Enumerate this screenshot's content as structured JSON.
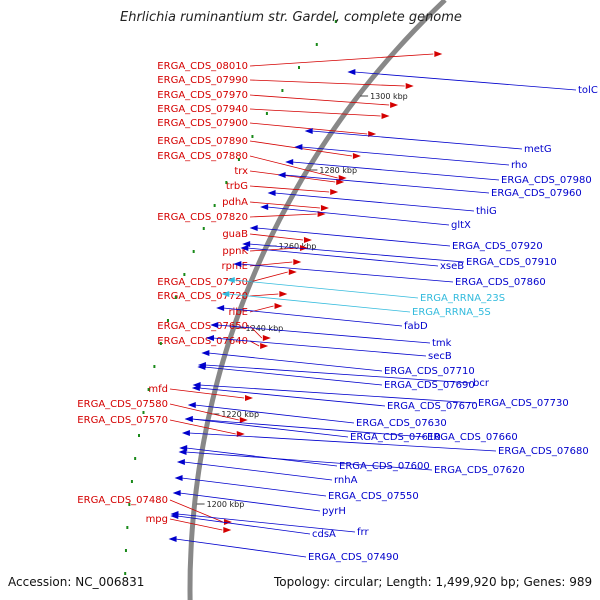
{
  "title": "Ehrlichia ruminantium str. Gardel, complete genome",
  "accession_text": "Accession: NC_006831",
  "summary_text": "Topology: circular; Length: 1,499,920 bp; Genes: 989",
  "colors": {
    "forward_label": "#d40000",
    "reverse_label": "#0000cc",
    "rrna_label": "#33bbdd",
    "backbone": "#888888",
    "marker": "#1a8a1a"
  },
  "kbp_labels": [
    "1300 kbp",
    "1280 kbp",
    "1260 kbp",
    "1240 kbp",
    "1220 kbp",
    "1200 kbp"
  ],
  "forward_genes": [
    "ERGA_CDS_08010",
    "ERGA_CDS_07990",
    "ERGA_CDS_07970",
    "ERGA_CDS_07940",
    "ERGA_CDS_07900",
    "ERGA_CDS_07890",
    "ERGA_CDS_07880",
    "trx",
    "trbG",
    "pdhA",
    "ERGA_CDS_07820",
    "guaB",
    "ppnK",
    "rpmE",
    "ERGA_CDS_07750",
    "ERGA_CDS_07720",
    "ribE",
    "ERGA_CDS_07650",
    "ERGA_CDS_07640",
    "mfd",
    "ERGA_CDS_07580",
    "ERGA_CDS_07570",
    "ERGA_CDS_07480",
    "mpg"
  ],
  "reverse_genes": [
    "tolC",
    "metG",
    "rho",
    "ERGA_CDS_07980",
    "ERGA_CDS_07960",
    "thiG",
    "gltX",
    "ERGA_CDS_07920",
    "xseB",
    "ERGA_CDS_07910",
    "ERGA_CDS_07860",
    "ERGA_RRNA_23S",
    "ERGA_RRNA_5S",
    "fabD",
    "tmk",
    "secB",
    "ERGA_CDS_07710",
    "bcr",
    "ERGA_CDS_07690",
    "ERGA_CDS_07670",
    "ERGA_CDS_07730",
    "ERGA_CDS_07630",
    "ERGA_CDS_07660",
    "ERGA_CDS_07610",
    "ERGA_CDS_07680",
    "ERGA_CDS_07600",
    "ERGA_CDS_07620",
    "rnhA",
    "ERGA_CDS_07550",
    "pyrH",
    "cdsA",
    "frr",
    "ERGA_CDS_07490"
  ]
}
